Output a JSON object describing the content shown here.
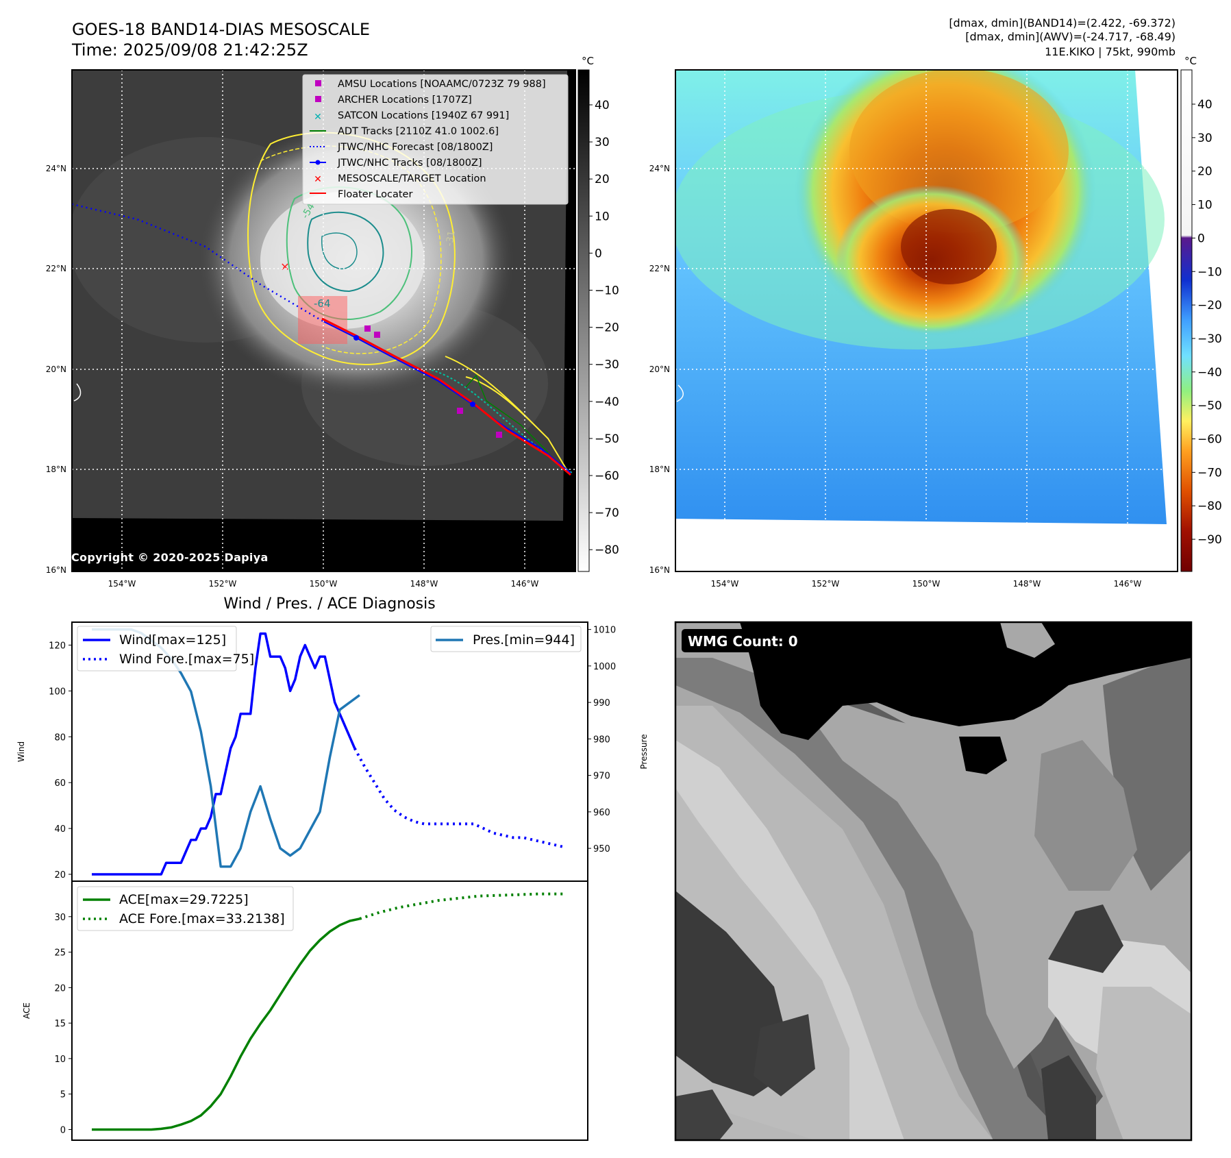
{
  "header": {
    "title_line1": "GOES-18 BAND14-DIAS MESOSCALE",
    "title_line2": "Time: 2025/09/08 21:42:25Z",
    "info_line1": "[dmax, dmin](BAND14)=(2.422, -69.372)",
    "info_line2": "[dmax, dmin](AWV)=(-24.717, -68.49)",
    "info_line3": "11E.KIKO | 75kt, 990mb",
    "copyright": "Copyright © 2020-2025 Dapiya"
  },
  "map_axes": {
    "lon_ticks": [
      "154°W",
      "152°W",
      "150°W",
      "148°W",
      "146°W"
    ],
    "lat_ticks": [
      "24°N",
      "22°N",
      "20°N",
      "18°N",
      "16°N"
    ]
  },
  "colorbar_gray": {
    "unit": "°C",
    "ticks": [
      "40",
      "30",
      "20",
      "10",
      "0",
      "−10",
      "−20",
      "−30",
      "−40",
      "−50",
      "−60",
      "−70",
      "−80"
    ]
  },
  "colorbar_awv": {
    "unit": "°C",
    "ticks": [
      "40",
      "30",
      "20",
      "10",
      "0",
      "−10",
      "−20",
      "−30",
      "−40",
      "−50",
      "−60",
      "−70",
      "−80",
      "−90"
    ]
  },
  "contour_labels": [
    "-54",
    "-64",
    "-31",
    "-54",
    "-31"
  ],
  "legend_map": [
    {
      "label": "AMSU Locations [NOAAMC/0723Z 79 988]",
      "color": "#c000c0",
      "marker": "square"
    },
    {
      "label": "ARCHER Locations [1707Z]",
      "color": "#c000c0",
      "marker": "square"
    },
    {
      "label": "SATCON Locations [1940Z 67 991]",
      "color": "#00b0b0",
      "marker": "x"
    },
    {
      "label": "ADT Tracks [2110Z 41.0 1002.6]",
      "color": "#008000",
      "marker": "line"
    },
    {
      "label": "JTWC/NHC Forecast [08/1800Z]",
      "color": "#0000ff",
      "marker": "dotted"
    },
    {
      "label": "JTWC/NHC Tracks [08/1800Z]",
      "color": "#0000ff",
      "marker": "line-dot"
    },
    {
      "label": "MESOSCALE/TARGET Location",
      "color": "#ff0000",
      "marker": "x"
    },
    {
      "label": "Floater Locater",
      "color": "#ff0000",
      "marker": "line"
    }
  ],
  "wmg": {
    "label": "WMG Count: 0"
  },
  "chart_data": [
    {
      "type": "line",
      "title": "Wind / Pres. / ACE Diagnosis",
      "ylabel": "Wind",
      "ylabel_right": "Pressure",
      "ylim": [
        17,
        130
      ],
      "ylim_right": [
        941,
        1012
      ],
      "yticks": [
        20,
        40,
        60,
        80,
        100,
        120
      ],
      "yticks_right": [
        950,
        960,
        970,
        980,
        990,
        1000,
        1010
      ],
      "series": [
        {
          "name": "Wind[max=125]",
          "axis": "left",
          "style": "solid",
          "color": "#0000ff",
          "x": [
            0,
            1,
            2,
            3,
            4,
            5,
            6,
            7,
            8,
            9,
            10,
            11,
            12,
            13,
            14,
            15,
            16,
            17,
            18,
            19,
            20,
            21,
            22,
            23,
            24,
            25,
            26,
            27,
            28,
            29,
            30,
            31,
            32,
            33,
            34,
            35,
            36,
            37,
            38,
            39,
            40,
            41,
            42,
            43,
            44,
            45,
            46,
            47,
            48,
            49,
            50,
            51,
            52,
            53,
            54,
            55,
            56,
            57
          ],
          "values": [
            20,
            20,
            20,
            20,
            20,
            20,
            20,
            20,
            20,
            20,
            20,
            20,
            20,
            20,
            20,
            25,
            25,
            25,
            25,
            30,
            35,
            35,
            40,
            40,
            45,
            55,
            55,
            65,
            75,
            80,
            90,
            90,
            90,
            110,
            125,
            125,
            115,
            115,
            115,
            110,
            100,
            105,
            115,
            120,
            115,
            110,
            115,
            115,
            105,
            95,
            90,
            85,
            80,
            75,
            null,
            null,
            null,
            null
          ]
        },
        {
          "name": "Wind Fore.[max=75]",
          "axis": "left",
          "style": "dotted",
          "color": "#0000ff",
          "x": [
            53,
            55,
            57,
            59,
            61,
            63,
            65,
            67,
            69,
            71,
            73,
            75,
            77,
            79,
            81,
            83,
            85,
            87,
            89,
            91,
            93,
            95
          ],
          "values": [
            75,
            67,
            60,
            53,
            48,
            45,
            43,
            42,
            42,
            42,
            42,
            42,
            42,
            40,
            38,
            37,
            36,
            36,
            35,
            34,
            33,
            32
          ]
        },
        {
          "name": "Pres.[min=944]",
          "axis": "right",
          "style": "solid",
          "color": "#1f77b4",
          "x": [
            0,
            2,
            4,
            6,
            8,
            10,
            12,
            14,
            16,
            18,
            20,
            22,
            24,
            26,
            28,
            30,
            32,
            34,
            36,
            38,
            40,
            42,
            44,
            46,
            48,
            50,
            52,
            54
          ],
          "values": [
            1010,
            1010,
            1010,
            1010,
            1010,
            1009,
            1007,
            1005,
            1002,
            998,
            993,
            982,
            967,
            945,
            945,
            950,
            960,
            967,
            958,
            950,
            948,
            950,
            955,
            960,
            975,
            988,
            990,
            992
          ]
        }
      ]
    },
    {
      "type": "line",
      "ylabel": "ACE",
      "ylim": [
        -1.5,
        35
      ],
      "yticks": [
        0,
        5,
        10,
        15,
        20,
        25,
        30
      ],
      "series": [
        {
          "name": "ACE[max=29.7225]",
          "style": "solid",
          "color": "#008000",
          "x": [
            0,
            2,
            4,
            6,
            8,
            10,
            12,
            14,
            16,
            18,
            20,
            22,
            24,
            26,
            28,
            30,
            32,
            34,
            36,
            38,
            40,
            42,
            44,
            46,
            48,
            50,
            52,
            54
          ],
          "values": [
            0,
            0,
            0,
            0,
            0,
            0,
            0,
            0.1,
            0.3,
            0.7,
            1.2,
            2.0,
            3.3,
            5.0,
            7.5,
            10.3,
            12.8,
            14.9,
            16.8,
            19.0,
            21.2,
            23.3,
            25.2,
            26.7,
            27.9,
            28.8,
            29.4,
            29.7
          ]
        },
        {
          "name": "ACE Fore.[max=33.2138]",
          "style": "dotted",
          "color": "#008000",
          "x": [
            54,
            58,
            62,
            66,
            70,
            74,
            78,
            82,
            86,
            90,
            95
          ],
          "values": [
            29.7,
            30.6,
            31.3,
            31.8,
            32.3,
            32.6,
            32.9,
            33.0,
            33.1,
            33.2,
            33.2
          ]
        }
      ]
    }
  ]
}
